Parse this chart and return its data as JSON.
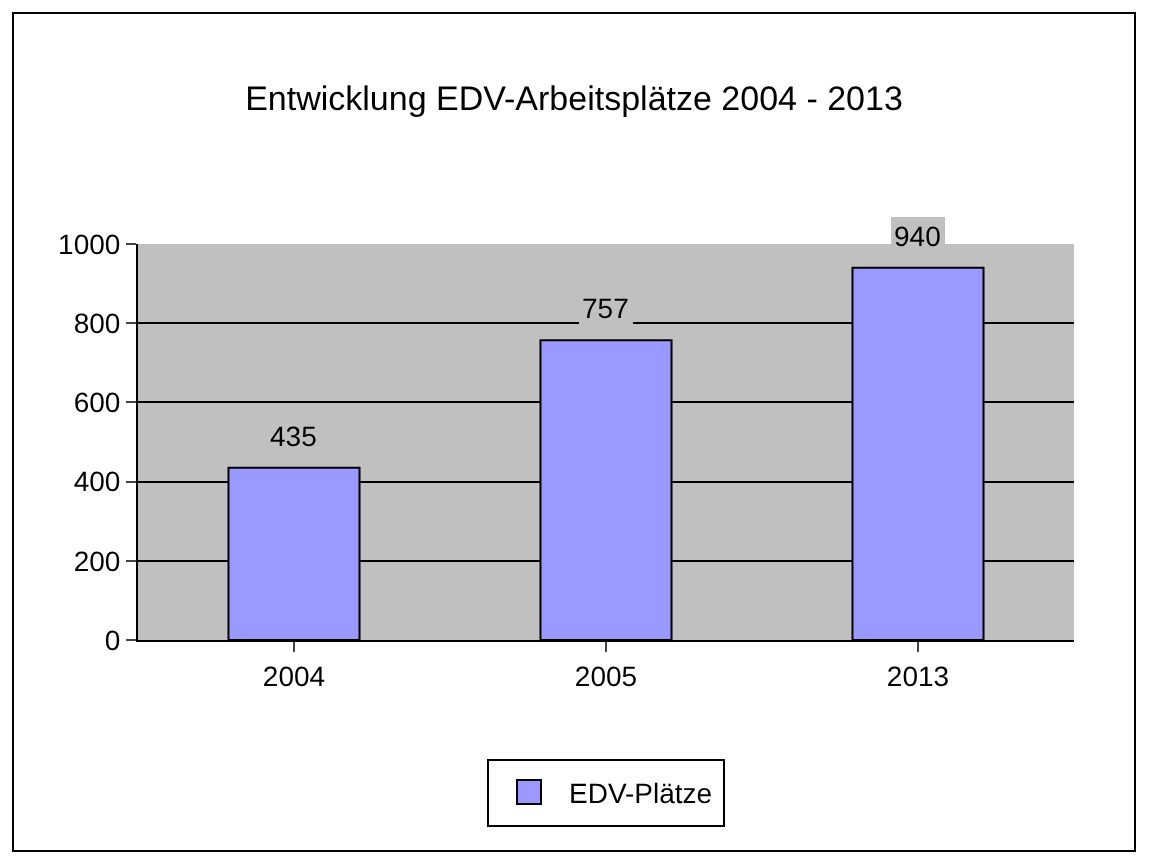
{
  "chart_data": {
    "type": "bar",
    "title": "Entwicklung EDV-Arbeitsplätze 2004 - 2013",
    "categories": [
      "2004",
      "2005",
      "2013"
    ],
    "series": [
      {
        "name": "EDV-Plätze",
        "color": "#9999ff",
        "values": [
          435,
          757,
          940
        ]
      }
    ],
    "ylim": [
      0,
      1000
    ],
    "yticks": [
      0,
      200,
      400,
      600,
      800,
      1000
    ],
    "grid": "y",
    "legend": "bottom",
    "data_labels": true
  }
}
